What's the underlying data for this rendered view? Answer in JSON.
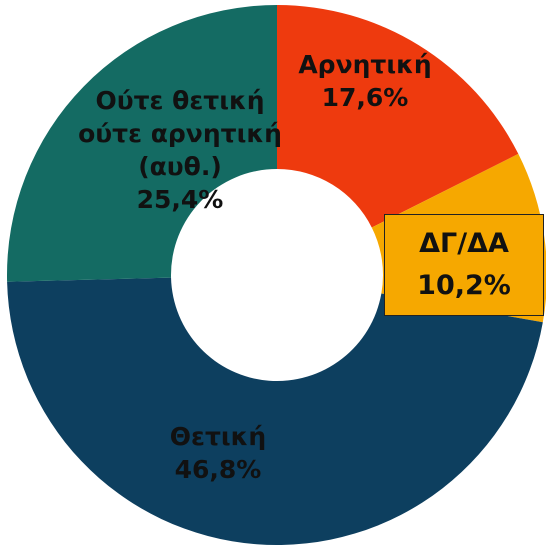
{
  "chart_data": {
    "type": "donut",
    "categories": [
      "Αρνητική",
      "ΔΓ/ΔΑ",
      "Θετική",
      "Ούτε θετική ούτε αρνητική (αυθ.)"
    ],
    "values": [
      17.6,
      10.2,
      46.8,
      25.4
    ],
    "value_labels": [
      "17,6%",
      "10,2%",
      "46,8%",
      "25,4%"
    ],
    "colors": [
      "#ee3a0e",
      "#f6a800",
      "#0d3f5f",
      "#146b63"
    ]
  }
}
